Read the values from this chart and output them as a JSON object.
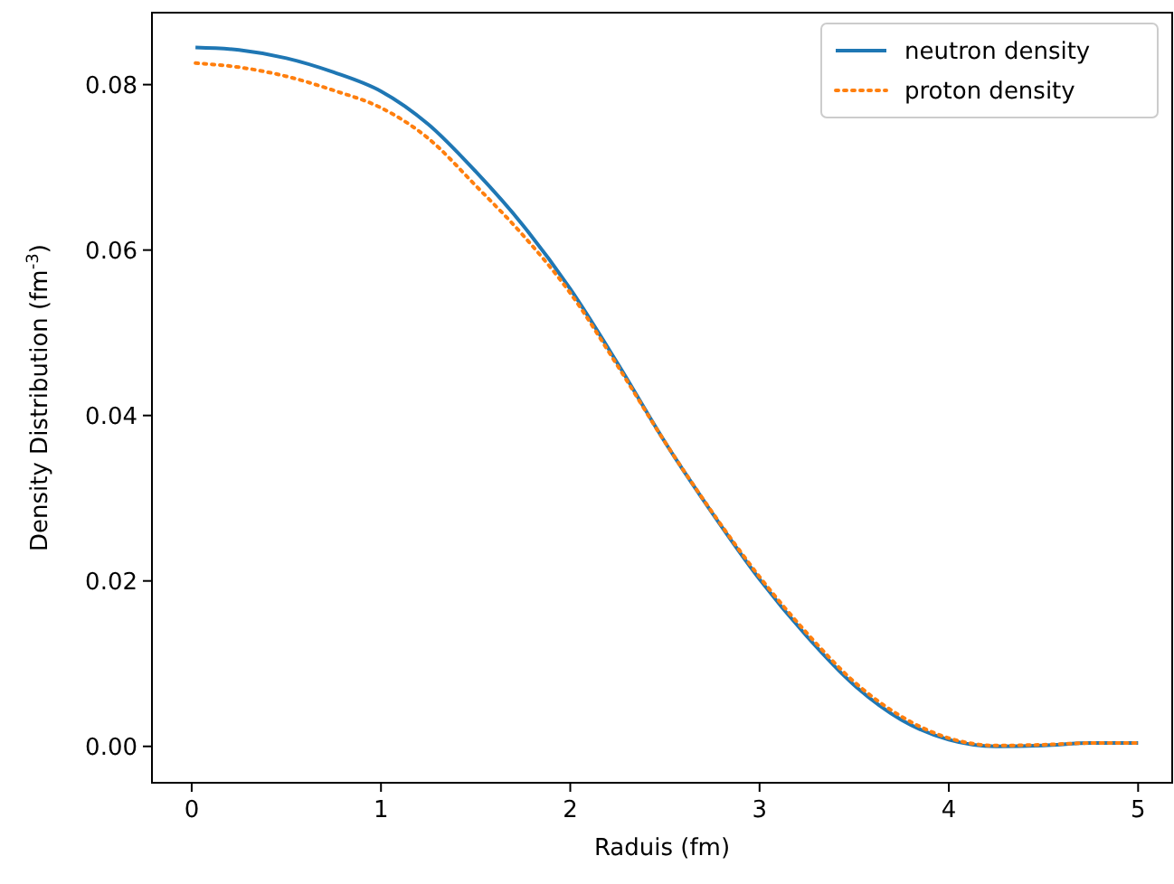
{
  "chart_data": {
    "type": "line",
    "xlabel": "Raduis (fm)",
    "ylabel": "Density Distribution (fm$^{-3}$)",
    "x": [
      0.02,
      0.25,
      0.5,
      0.75,
      1,
      1.25,
      1.5,
      1.75,
      2,
      2.25,
      2.5,
      2.75,
      3,
      3.25,
      3.5,
      3.75,
      4,
      4.25,
      4.5,
      4.75,
      5
    ],
    "series": [
      {
        "name": "neutron density",
        "color": "#1f77b4",
        "line_style": "solid",
        "values": [
          0.0845,
          0.0842,
          0.0832,
          0.0815,
          0.0792,
          0.0752,
          0.0695,
          0.063,
          0.0553,
          0.0463,
          0.0368,
          0.0282,
          0.0202,
          0.0133,
          0.0074,
          0.0032,
          0.0008,
          0.0,
          0.0001,
          0.0004,
          0.0004
        ]
      },
      {
        "name": "proton density",
        "color": "#ff7f0e",
        "line_style": "dotted",
        "values": [
          0.0826,
          0.0821,
          0.081,
          0.0793,
          0.0772,
          0.0735,
          0.0678,
          0.0618,
          0.0548,
          0.046,
          0.0368,
          0.0283,
          0.0205,
          0.0137,
          0.0078,
          0.0036,
          0.001,
          0.0001,
          0.0002,
          0.0004,
          0.0004
        ]
      }
    ],
    "xlim": [
      -0.21,
      5.18
    ],
    "ylim": [
      -0.0044,
      0.0887
    ],
    "xticks": [
      0,
      1,
      2,
      3,
      4,
      5
    ],
    "yticks": [
      {
        "value": 0,
        "label": "0.00"
      },
      {
        "value": 0.02,
        "label": "0.02"
      },
      {
        "value": 0.04,
        "label": "0.04"
      },
      {
        "value": 0.06,
        "label": "0.06"
      },
      {
        "value": 0.08,
        "label": "0.08"
      }
    ],
    "legend": "top right",
    "grid": false
  }
}
